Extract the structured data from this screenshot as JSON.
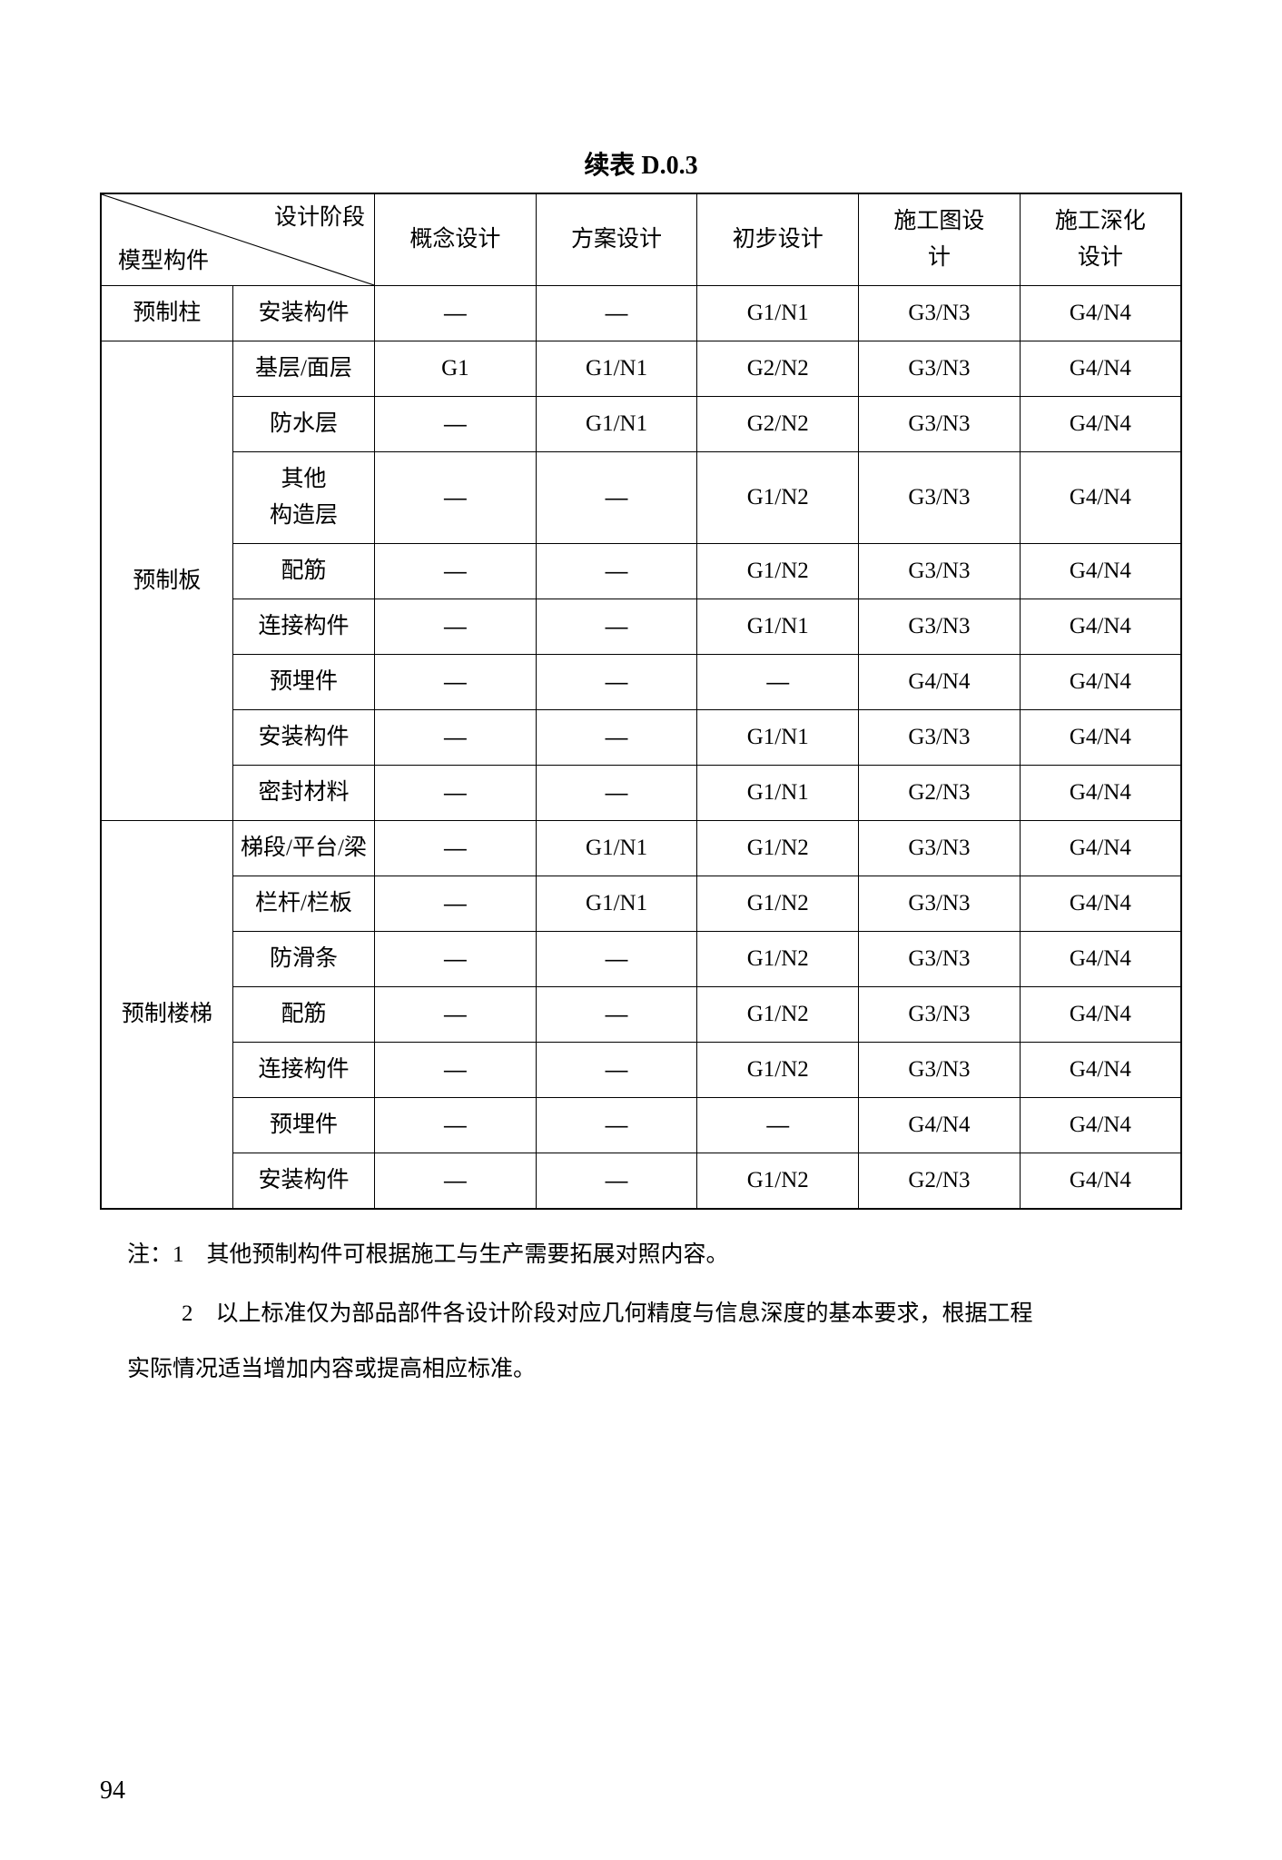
{
  "title": "续表 D.0.3",
  "page_number": "94",
  "header": {
    "diag_top": "设计阶段",
    "diag_bottom": "模型构件",
    "columns": [
      "概念设计",
      "方案设计",
      "初步设计",
      "施工图设计",
      "施工深化设计"
    ]
  },
  "dash": "—",
  "groups": [
    {
      "name": "预制柱",
      "rowspan": 1,
      "rows": [
        {
          "label": "安装构件",
          "cells": [
            "—",
            "—",
            "G1/N1",
            "G3/N3",
            "G4/N4"
          ]
        }
      ]
    },
    {
      "name": "预制板",
      "rowspan": 8,
      "rows": [
        {
          "label": "基层/面层",
          "cells": [
            "G1",
            "G1/N1",
            "G2/N2",
            "G3/N3",
            "G4/N4"
          ]
        },
        {
          "label": "防水层",
          "cells": [
            "—",
            "G1/N1",
            "G2/N2",
            "G3/N3",
            "G4/N4"
          ]
        },
        {
          "label": "其他构造层",
          "cells": [
            "—",
            "—",
            "G1/N2",
            "G3/N3",
            "G4/N4"
          ]
        },
        {
          "label": "配筋",
          "cells": [
            "—",
            "—",
            "G1/N2",
            "G3/N3",
            "G4/N4"
          ]
        },
        {
          "label": "连接构件",
          "cells": [
            "—",
            "—",
            "G1/N1",
            "G3/N3",
            "G4/N4"
          ]
        },
        {
          "label": "预埋件",
          "cells": [
            "—",
            "—",
            "—",
            "G4/N4",
            "G4/N4"
          ]
        },
        {
          "label": "安装构件",
          "cells": [
            "—",
            "—",
            "G1/N1",
            "G3/N3",
            "G4/N4"
          ]
        },
        {
          "label": "密封材料",
          "cells": [
            "—",
            "—",
            "G1/N1",
            "G2/N3",
            "G4/N4"
          ]
        }
      ]
    },
    {
      "name": "预制楼梯",
      "rowspan": 7,
      "rows": [
        {
          "label": "梯段/平台/梁",
          "cells": [
            "—",
            "G1/N1",
            "G1/N2",
            "G3/N3",
            "G4/N4"
          ]
        },
        {
          "label": "栏杆/栏板",
          "cells": [
            "—",
            "G1/N1",
            "G1/N2",
            "G3/N3",
            "G4/N4"
          ]
        },
        {
          "label": "防滑条",
          "cells": [
            "—",
            "—",
            "G1/N2",
            "G3/N3",
            "G4/N4"
          ]
        },
        {
          "label": "配筋",
          "cells": [
            "—",
            "—",
            "G1/N2",
            "G3/N3",
            "G4/N4"
          ]
        },
        {
          "label": "连接构件",
          "cells": [
            "—",
            "—",
            "G1/N2",
            "G3/N3",
            "G4/N4"
          ]
        },
        {
          "label": "预埋件",
          "cells": [
            "—",
            "—",
            "—",
            "G4/N4",
            "G4/N4"
          ]
        },
        {
          "label": "安装构件",
          "cells": [
            "—",
            "—",
            "G1/N2",
            "G2/N3",
            "G4/N4"
          ]
        }
      ]
    }
  ],
  "notes": {
    "prefix": "注：",
    "items": [
      "1　其他预制构件可根据施工与生产需要拓展对照内容。",
      "2　以上标准仅为部品部件各设计阶段对应几何精度与信息深度的基本要求，根据工程实际情况适当增加内容或提高相应标准。"
    ]
  },
  "style": {
    "font_size_pt": 14,
    "title_font_size_pt": 15,
    "border_color": "#000000",
    "background_color": "#ffffff",
    "text_color": "#000000"
  }
}
